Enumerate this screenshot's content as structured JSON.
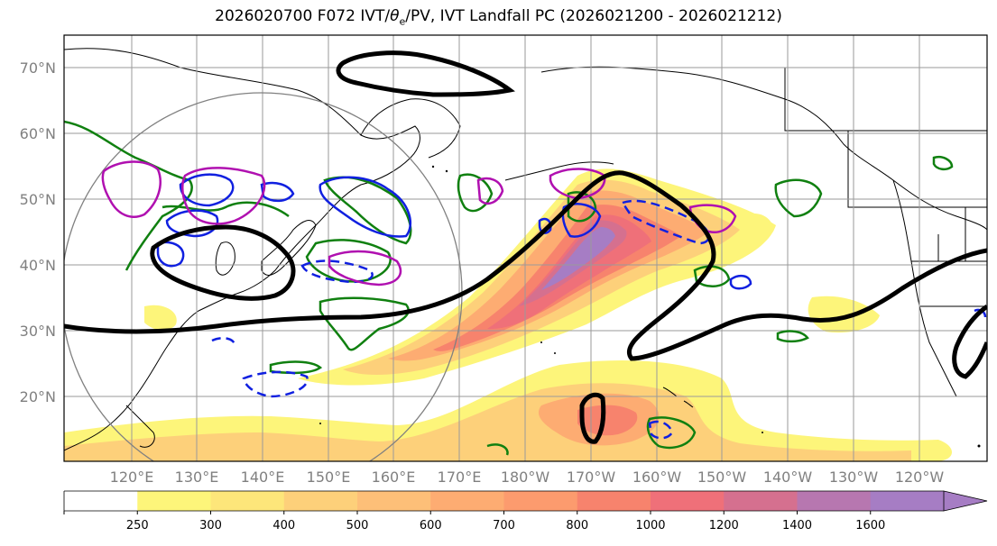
{
  "title": "2026020700 F072 IVT/",
  "title_theta": "θ",
  "title_sub": "e",
  "title_rest": "/PV, IVT Landfall PC (2026021200 - 2026021212)",
  "lat_labels": [
    "70°N",
    "60°N",
    "50°N",
    "40°N",
    "30°N",
    "20°N"
  ],
  "lon_labels": [
    "120°E",
    "130°E",
    "140°E",
    "150°E",
    "160°E",
    "170°E",
    "180°W",
    "170°W",
    "160°W",
    "150°W",
    "140°W",
    "130°W",
    "120°W"
  ],
  "colorbar": {
    "ticks": [
      "250",
      "300",
      "400",
      "500",
      "600",
      "700",
      "800",
      "1000",
      "1200",
      "1400",
      "1600"
    ],
    "colors": [
      "#ffffff",
      "#fdf57a",
      "#fde67a",
      "#fdd07a",
      "#fdbf78",
      "#fdac72",
      "#fc9b6e",
      "#f7836d",
      "#ef7079",
      "#d5708f",
      "#b777b0",
      "#a67dc4"
    ]
  }
}
